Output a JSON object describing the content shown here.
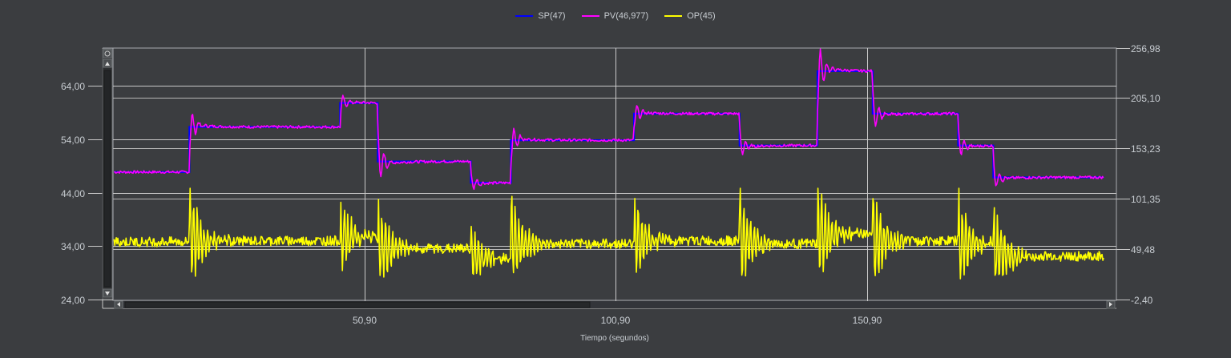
{
  "legend": [
    {
      "name": "SP(47)",
      "color": "#0000ff"
    },
    {
      "name": "PV(46,977)",
      "color": "#ff00ff"
    },
    {
      "name": "OP(45)",
      "color": "#ffff00"
    }
  ],
  "axes": {
    "xlabel": "Tiempo (segundos)",
    "x_ticks": [
      "50,90",
      "100,90",
      "150,90"
    ],
    "left_ticks": [
      "64,00",
      "54,00",
      "44,00",
      "34,00",
      "24,00"
    ],
    "right_ticks": [
      "256,98",
      "205,10",
      "153,23",
      "101,35",
      "49,48",
      "-2,40"
    ]
  },
  "chart_data": {
    "type": "line",
    "title": "",
    "xlabel": "Tiempo (segundos)",
    "ylabel_left": "",
    "ylabel_right": "",
    "xlim": [
      0.8,
      200.5
    ],
    "ylim_left": [
      24.0,
      71.5
    ],
    "ylim_right": [
      -2.4,
      256.98
    ],
    "x_ticks": [
      50.9,
      100.9,
      150.9
    ],
    "y_left_ticks": [
      24.0,
      34.0,
      44.0,
      54.0,
      64.0
    ],
    "y_right_ticks": [
      -2.4,
      49.48,
      101.35,
      153.23,
      205.1,
      256.98
    ],
    "grid": true,
    "legend_position": "top-center",
    "series": [
      {
        "name": "SP(47)",
        "color": "#0000ff",
        "axis": "left",
        "x": [
          1,
          16,
          16,
          46,
          46,
          53.5,
          53.5,
          72,
          72,
          80,
          80,
          104.5,
          104.5,
          125.5,
          125.5,
          141,
          141,
          152,
          152,
          169,
          169,
          176,
          176,
          198
        ],
        "values": [
          48,
          48,
          56.5,
          56.5,
          61,
          61,
          50,
          50,
          46,
          46,
          54,
          54,
          59,
          59,
          53,
          53,
          67,
          67,
          59,
          59,
          53,
          53,
          47,
          47
        ]
      },
      {
        "name": "PV(46,977)",
        "color": "#ff00ff",
        "axis": "left",
        "note": "follows SP with underdamped oscillation after each step",
        "x": [
          1,
          16,
          18,
          20,
          30,
          46,
          48,
          53.5,
          55,
          72,
          73,
          80,
          82,
          104.5,
          107,
          125.5,
          127,
          141,
          143,
          152,
          154,
          169,
          171,
          176,
          178,
          198
        ],
        "values": [
          48,
          48,
          57.5,
          57.8,
          57,
          56.8,
          61,
          61,
          49.5,
          50,
          46.5,
          46,
          54.5,
          54,
          60.5,
          59.5,
          52.5,
          52.5,
          68.5,
          67,
          58.5,
          59,
          52.5,
          53,
          46,
          46.5
        ]
      },
      {
        "name": "OP(45)",
        "color": "#ffff00",
        "axis": "right",
        "note": "noisy controller output with spikes at each SP step",
        "x": [
          1,
          16,
          18,
          25,
          46,
          50,
          53.5,
          55,
          60,
          72,
          75,
          80,
          82,
          95,
          104.5,
          107,
          115,
          125.5,
          128,
          141,
          143,
          150,
          152,
          158,
          169,
          172,
          176,
          180,
          198
        ],
        "values": [
          56,
          58,
          110,
          58,
          58,
          65,
          45,
          20,
          50,
          48,
          40,
          40,
          85,
          55,
          58,
          95,
          58,
          50,
          25,
          50,
          105,
          70,
          62,
          58,
          60,
          35,
          40,
          40,
          45
        ]
      }
    ]
  }
}
